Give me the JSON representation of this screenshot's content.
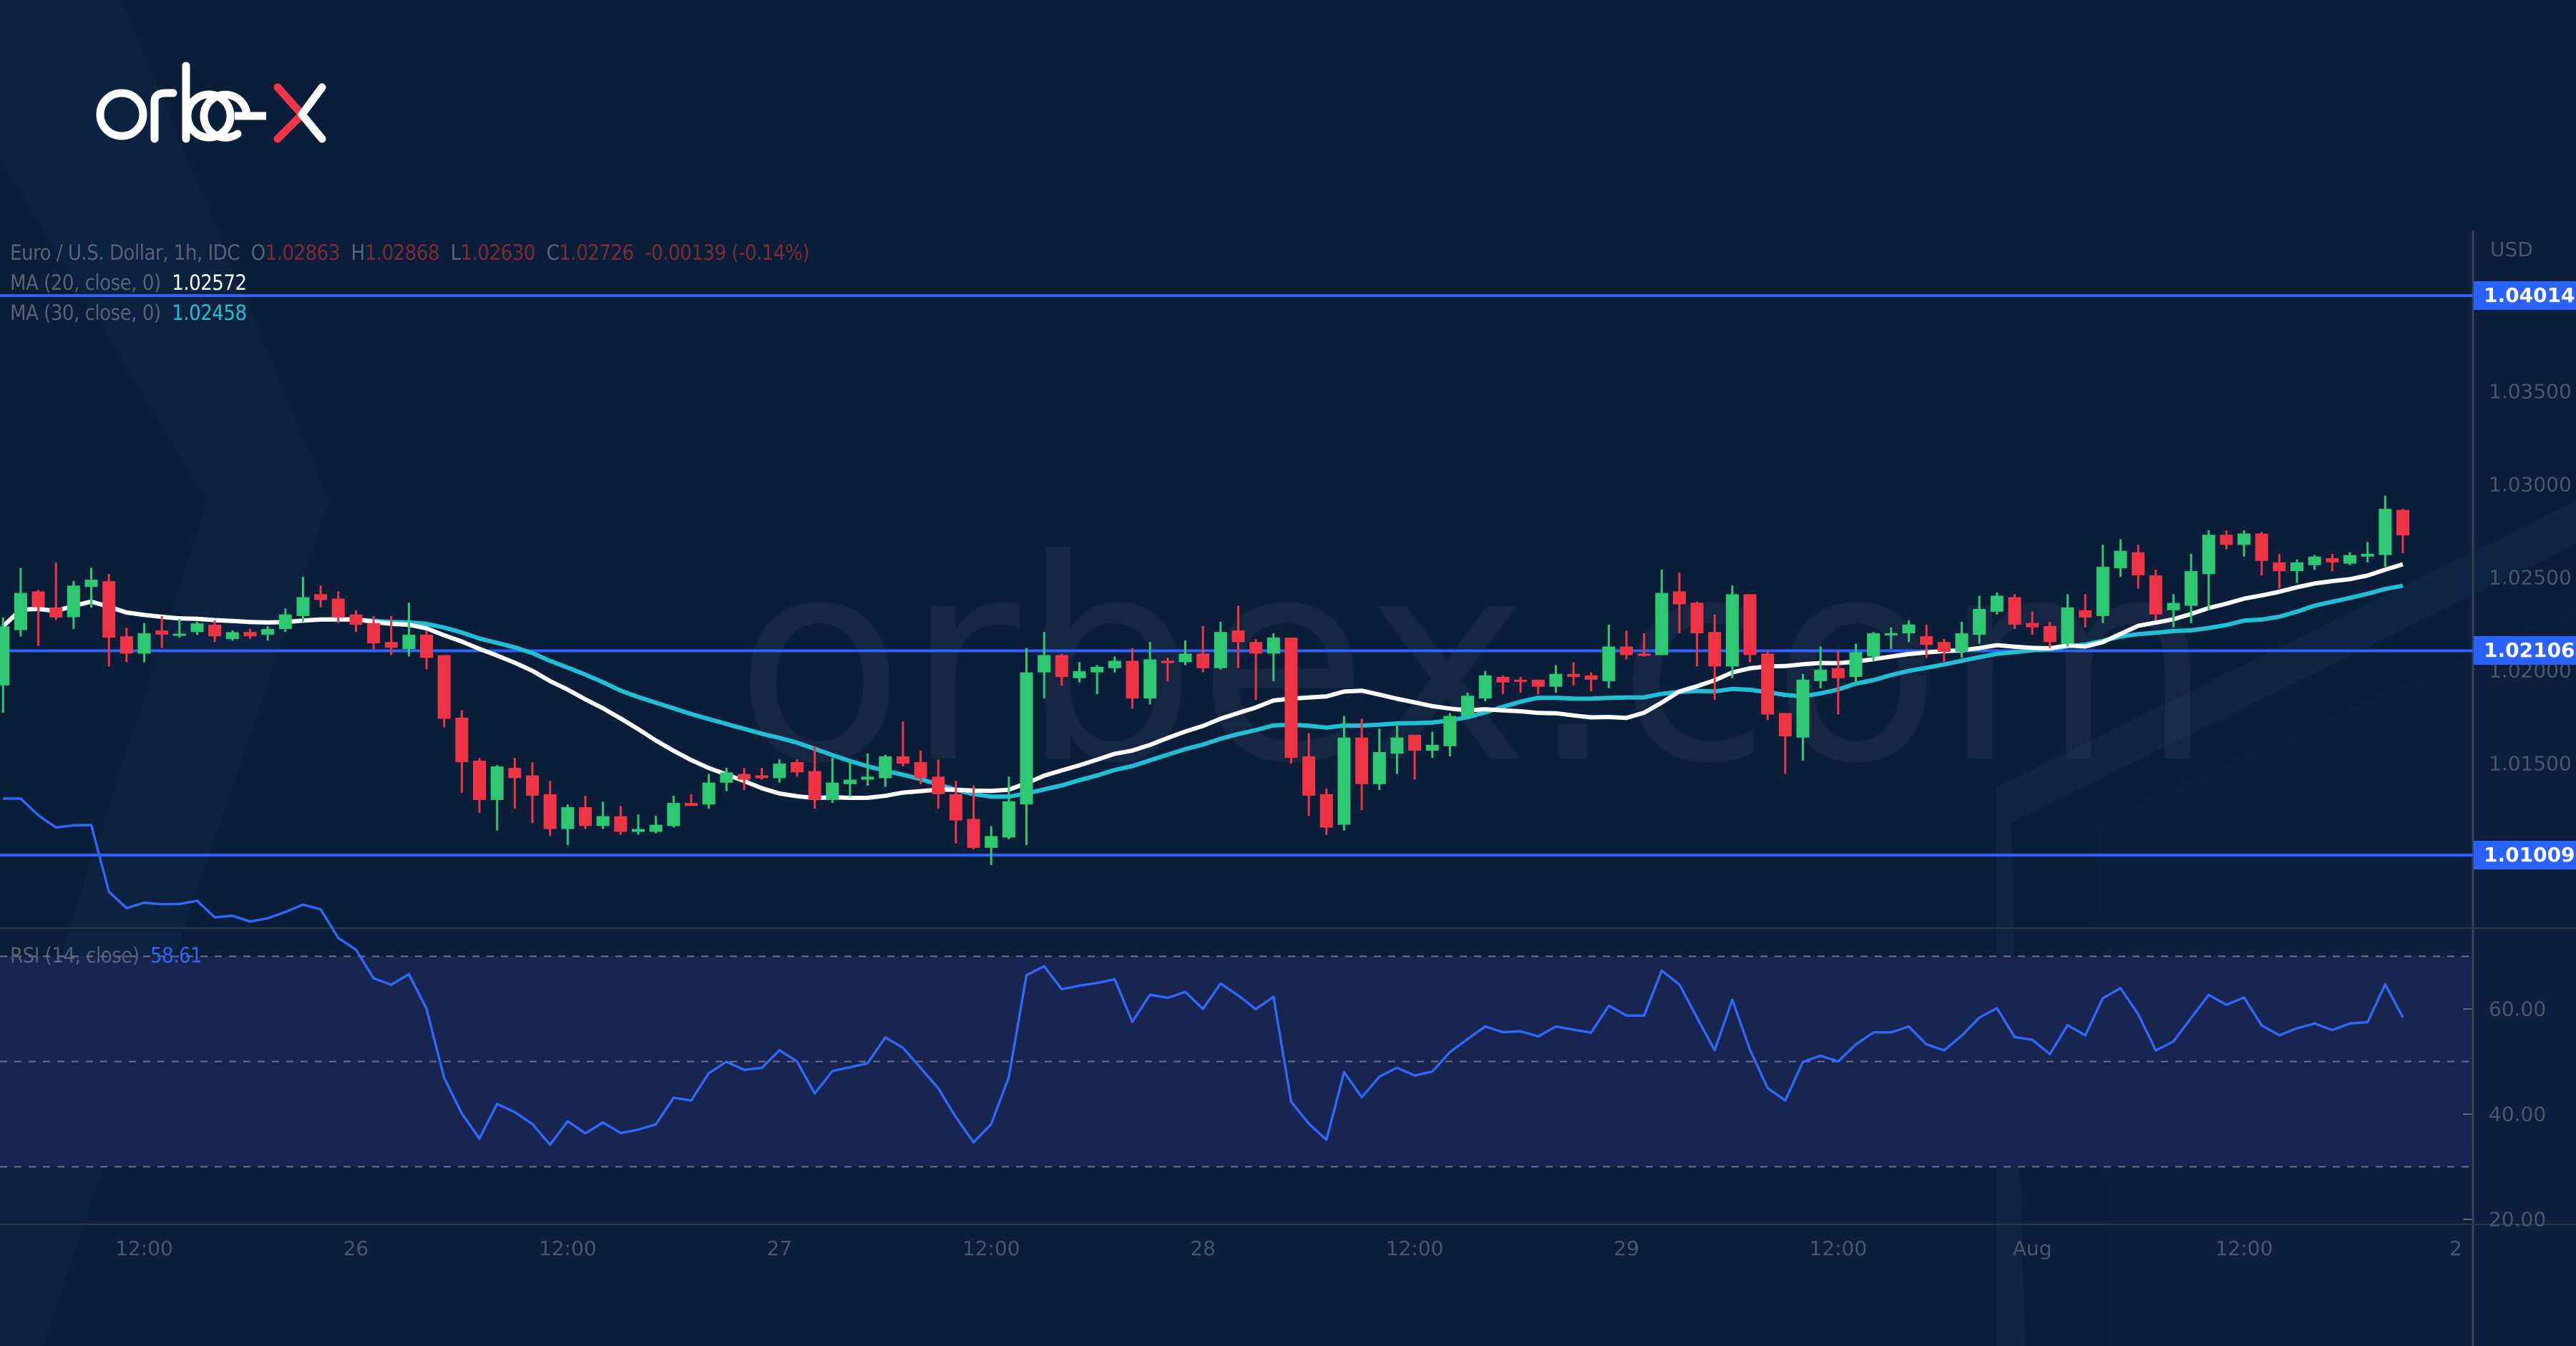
{
  "logo": {
    "text_main": "orbe",
    "text_accent": "x",
    "accent_color": "#ef3545"
  },
  "watermark": "orbex.com",
  "legend": {
    "symbol": "Euro / U.S. Dollar, 1h, IDC",
    "o_label": "O",
    "o": "1.02863",
    "h_label": "H",
    "h": "1.02868",
    "l_label": "L",
    "l": "1.02630",
    "c_label": "C",
    "c": "1.02726",
    "change": "-0.00139 (-0.14%)",
    "ma20_label": "MA (20, close, 0)",
    "ma20_value": "1.02572",
    "ma30_label": "MA (30, close, 0)",
    "ma30_value": "1.02458",
    "rsi_label": "RSI (14, close)",
    "rsi_value": "58.61"
  },
  "colors": {
    "up": "#2ec872",
    "down": "#ef3545",
    "ma20": "#ffffff",
    "ma30": "#22bfd4",
    "rsi": "#2f66f2",
    "level": "#2962ff",
    "background": "#0a1d39"
  },
  "chart_data": {
    "type": "candlestick",
    "title": "Euro / U.S. Dollar, 1h, IDC",
    "currency": "USD",
    "ylim": [
      1.0069,
      1.0423
    ],
    "y_ticks": [
      "1.03500",
      "1.03000",
      "1.02500",
      "1.02000",
      "1.01500"
    ],
    "x_ticks": [
      "12:00",
      "26",
      "12:00",
      "27",
      "12:00",
      "28",
      "12:00",
      "29",
      "12:00",
      "Aug",
      "12:00",
      "2"
    ],
    "x_tick_candle_index": [
      8,
      20,
      32,
      44,
      56,
      68,
      80,
      92,
      104,
      115,
      127,
      139
    ],
    "levels": [
      {
        "value": 1.04014,
        "label": "1.04014"
      },
      {
        "value": 1.02106,
        "label": "1.02106"
      },
      {
        "value": 1.01009,
        "label": "1.01009"
      }
    ],
    "indicators": {
      "ma_periods": [
        20,
        30
      ],
      "rsi_period": 14,
      "rsi_levels": [
        70,
        50,
        30
      ],
      "rsi_ticks": [
        "60.00",
        "40.00",
        "20.00"
      ],
      "rsi_tick_values": [
        60,
        40,
        20
      ],
      "rsi_ylim": [
        17.5,
        80
      ]
    },
    "ohlc": [
      [
        1.0192,
        1.02285,
        1.01773,
        1.02237
      ],
      [
        1.02217,
        1.02551,
        1.02183,
        1.02417
      ],
      [
        1.02425,
        1.02433,
        1.02132,
        1.0234
      ],
      [
        1.02339,
        1.0258,
        1.0227,
        1.02285
      ],
      [
        1.02287,
        1.0248,
        1.02224,
        1.02456
      ],
      [
        1.02449,
        1.02551,
        1.02339,
        1.02488
      ],
      [
        1.0248,
        1.02519,
        1.02022,
        1.02177
      ],
      [
        1.02184,
        1.0223,
        1.02045,
        1.02091
      ],
      [
        1.02091,
        1.02255,
        1.02045,
        1.022
      ],
      [
        1.02215,
        1.02293,
        1.02121,
        1.02193
      ],
      [
        1.02193,
        1.02278,
        1.02177,
        1.02198
      ],
      [
        1.02207,
        1.02262,
        1.02192,
        1.02253
      ],
      [
        1.02246,
        1.0227,
        1.02153,
        1.02184
      ],
      [
        1.02169,
        1.02215,
        1.02161,
        1.02206
      ],
      [
        1.02207,
        1.02224,
        1.02169,
        1.02184
      ],
      [
        1.02193,
        1.02239,
        1.02161,
        1.02223
      ],
      [
        1.02223,
        1.02333,
        1.02207,
        1.02301
      ],
      [
        1.02293,
        1.02503,
        1.02262,
        1.02394
      ],
      [
        1.0241,
        1.02456,
        1.0234,
        1.02379
      ],
      [
        1.02387,
        1.02425,
        1.02255,
        1.02285
      ],
      [
        1.02301,
        1.02324,
        1.02207,
        1.02246
      ],
      [
        1.02255,
        1.02293,
        1.02115,
        1.02146
      ],
      [
        1.02153,
        1.02293,
        1.02083,
        1.02123
      ],
      [
        1.02115,
        1.02364,
        1.02075,
        1.02192
      ],
      [
        1.02192,
        1.02215,
        1.02006,
        1.02068
      ],
      [
        1.02083,
        1.02083,
        1.01695,
        1.01741
      ],
      [
        1.01747,
        1.01787,
        1.01344,
        1.01508
      ],
      [
        1.01516,
        1.01531,
        1.01235,
        1.01305
      ],
      [
        1.01305,
        1.01492,
        1.01141,
        1.01485
      ],
      [
        1.01477,
        1.01531,
        1.01258,
        1.01422
      ],
      [
        1.01437,
        1.01508,
        1.0118,
        1.01328
      ],
      [
        1.01336,
        1.01407,
        1.01111,
        1.01149
      ],
      [
        1.01149,
        1.01281,
        1.01063,
        1.01266
      ],
      [
        1.01266,
        1.01328,
        1.01149,
        1.01165
      ],
      [
        1.01165,
        1.01296,
        1.01149,
        1.01218
      ],
      [
        1.01218,
        1.01273,
        1.01118,
        1.01134
      ],
      [
        1.01134,
        1.01227,
        1.01118,
        1.01149
      ],
      [
        1.01134,
        1.0122,
        1.01126,
        1.01172
      ],
      [
        1.01165,
        1.01328,
        1.01157,
        1.01289
      ],
      [
        1.01289,
        1.01336,
        1.01273,
        1.01273
      ],
      [
        1.01281,
        1.01445,
        1.01258,
        1.01398
      ],
      [
        1.01398,
        1.01477,
        1.01352,
        1.01453
      ],
      [
        1.01445,
        1.01477,
        1.01359,
        1.01414
      ],
      [
        1.01437,
        1.01477,
        1.01414,
        1.01422
      ],
      [
        1.01422,
        1.01523,
        1.01398,
        1.015
      ],
      [
        1.01508,
        1.01523,
        1.0143,
        1.01453
      ],
      [
        1.0146,
        1.01594,
        1.01258,
        1.01305
      ],
      [
        1.01305,
        1.01531,
        1.01289,
        1.01398
      ],
      [
        1.0139,
        1.01516,
        1.01321,
        1.01414
      ],
      [
        1.01414,
        1.01555,
        1.01382,
        1.0143
      ],
      [
        1.01422,
        1.01548,
        1.01375,
        1.01539
      ],
      [
        1.01539,
        1.01726,
        1.01485,
        1.015
      ],
      [
        1.01508,
        1.01571,
        1.0139,
        1.01422
      ],
      [
        1.0143,
        1.01523,
        1.01258,
        1.01336
      ],
      [
        1.01336,
        1.01407,
        1.01071,
        1.01195
      ],
      [
        1.01203,
        1.01382,
        1.0104,
        1.01048
      ],
      [
        1.01048,
        1.01165,
        1.00956,
        1.01111
      ],
      [
        1.01103,
        1.0143,
        1.01094,
        1.01298
      ],
      [
        1.01281,
        1.02121,
        1.01063,
        1.0199
      ],
      [
        1.0199,
        1.02207,
        1.0185,
        1.02083
      ],
      [
        1.02083,
        1.02091,
        1.01919,
        1.01966
      ],
      [
        1.01959,
        1.02045,
        1.01936,
        1.01997
      ],
      [
        1.0199,
        1.02029,
        1.01873,
        1.0202
      ],
      [
        1.02013,
        1.02075,
        1.0199,
        1.02052
      ],
      [
        1.02052,
        1.02121,
        1.01795,
        1.0185
      ],
      [
        1.0185,
        1.02153,
        1.01818,
        1.0206
      ],
      [
        1.02052,
        1.02068,
        1.01943,
        1.02045
      ],
      [
        1.02045,
        1.02161,
        1.02029,
        1.02091
      ],
      [
        1.02091,
        1.02239,
        1.0199,
        1.02013
      ],
      [
        1.02013,
        1.02262,
        1.02005,
        1.02207
      ],
      [
        1.02215,
        1.02348,
        1.02013,
        1.02153
      ],
      [
        1.02153,
        1.02169,
        1.01842,
        1.02091
      ],
      [
        1.02091,
        1.022,
        1.01943,
        1.02177
      ],
      [
        1.02177,
        1.02177,
        1.015,
        1.01531
      ],
      [
        1.01539,
        1.01664,
        1.0122,
        1.01328
      ],
      [
        1.01336,
        1.01367,
        1.01118,
        1.01157
      ],
      [
        1.01172,
        1.01756,
        1.01141,
        1.0164
      ],
      [
        1.0164,
        1.01741,
        1.0125,
        1.0139
      ],
      [
        1.0139,
        1.01687,
        1.01359,
        1.01562
      ],
      [
        1.01554,
        1.01718,
        1.01445,
        1.0164
      ],
      [
        1.01655,
        1.01655,
        1.01414,
        1.0157
      ],
      [
        1.0157,
        1.01671,
        1.01531,
        1.01601
      ],
      [
        1.01594,
        1.01772,
        1.01539,
        1.01756
      ],
      [
        1.01756,
        1.01881,
        1.01741,
        1.01865
      ],
      [
        1.0185,
        1.01997,
        1.01835,
        1.01974
      ],
      [
        1.01966,
        1.01974,
        1.01873,
        1.01936
      ],
      [
        1.01951,
        1.01966,
        1.01881,
        1.01943
      ],
      [
        1.01951,
        1.01951,
        1.01873,
        1.01913
      ],
      [
        1.01913,
        1.02029,
        1.01881,
        1.01982
      ],
      [
        1.01982,
        1.02045,
        1.0192,
        1.01966
      ],
      [
        1.01974,
        1.0199,
        1.01888,
        1.01951
      ],
      [
        1.01943,
        1.02247,
        1.01905,
        1.02129
      ],
      [
        1.02129,
        1.02215,
        1.0206,
        1.02083
      ],
      [
        1.02091,
        1.022,
        1.02075,
        1.02083
      ],
      [
        1.02083,
        1.02542,
        1.02083,
        1.02417
      ],
      [
        1.02425,
        1.02526,
        1.022,
        1.02356
      ],
      [
        1.02364,
        1.02371,
        1.02022,
        1.022
      ],
      [
        1.02207,
        1.02301,
        1.01842,
        1.02022
      ],
      [
        1.02022,
        1.02456,
        1.01959,
        1.0241
      ],
      [
        1.0241,
        1.0241,
        1.02045,
        1.02083
      ],
      [
        1.02091,
        1.02106,
        1.01733,
        1.01764
      ],
      [
        1.01772,
        1.01772,
        1.01445,
        1.01647
      ],
      [
        1.0164,
        1.01982,
        1.01516,
        1.01951
      ],
      [
        1.01943,
        1.02129,
        1.01905,
        1.02005
      ],
      [
        1.02013,
        1.02106,
        1.01764,
        1.01959
      ],
      [
        1.01966,
        1.02144,
        1.0192,
        1.02098
      ],
      [
        1.02075,
        1.02207,
        1.02052,
        1.022
      ],
      [
        1.02192,
        1.02232,
        1.02115,
        1.022
      ],
      [
        1.022,
        1.0227,
        1.02153,
        1.02247
      ],
      [
        1.02184,
        1.02247,
        1.02068,
        1.02138
      ],
      [
        1.02153,
        1.0217,
        1.02046,
        1.021
      ],
      [
        1.021,
        1.02262,
        1.02068,
        1.022
      ],
      [
        1.02192,
        1.02402,
        1.02144,
        1.02331
      ],
      [
        1.02316,
        1.02419,
        1.02301,
        1.02402
      ],
      [
        1.02394,
        1.0241,
        1.02223,
        1.02247
      ],
      [
        1.02255,
        1.02316,
        1.02192,
        1.02232
      ],
      [
        1.02239,
        1.02262,
        1.02121,
        1.02153
      ],
      [
        1.02144,
        1.0241,
        1.02129,
        1.02339
      ],
      [
        1.02324,
        1.0241,
        1.02232,
        1.02285
      ],
      [
        1.02293,
        1.02675,
        1.02255,
        1.02557
      ],
      [
        1.02549,
        1.02705,
        1.02503,
        1.02643
      ],
      [
        1.02635,
        1.02675,
        1.0244,
        1.02511
      ],
      [
        1.02511,
        1.02541,
        1.0227,
        1.02301
      ],
      [
        1.02324,
        1.0241,
        1.02232,
        1.02363
      ],
      [
        1.02348,
        1.02627,
        1.02255,
        1.02534
      ],
      [
        1.02518,
        1.02753,
        1.02324,
        1.02729
      ],
      [
        1.02729,
        1.02753,
        1.0265,
        1.02675
      ],
      [
        1.02675,
        1.02753,
        1.02612,
        1.02736
      ],
      [
        1.02736,
        1.02744,
        1.02511,
        1.02589
      ],
      [
        1.02581,
        1.02627,
        1.0244,
        1.02534
      ],
      [
        1.02534,
        1.02597,
        1.02471,
        1.02581
      ],
      [
        1.02566,
        1.0262,
        1.02541,
        1.02612
      ],
      [
        1.02604,
        1.02627,
        1.02534,
        1.02581
      ],
      [
        1.02574,
        1.02635,
        1.02566,
        1.0262
      ],
      [
        1.02612,
        1.0269,
        1.02581,
        1.02627
      ],
      [
        1.0262,
        1.02939,
        1.02557,
        1.02868
      ],
      [
        1.02863,
        1.02868,
        1.0263,
        1.02726
      ]
    ]
  }
}
